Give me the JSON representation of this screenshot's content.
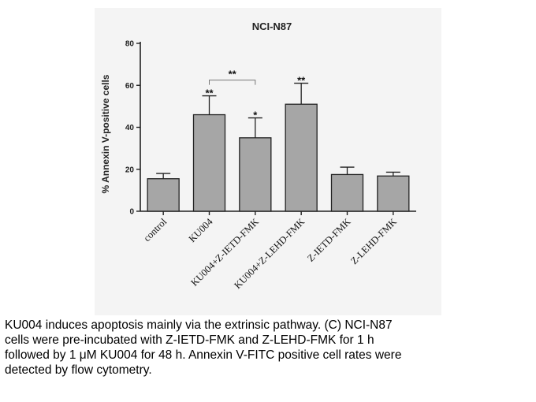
{
  "chart_data": {
    "type": "bar",
    "title": "NCI-N87",
    "ylabel": "% Annexin V-positive cells",
    "xlabel": "",
    "ylim": [
      0,
      80
    ],
    "yticks": [
      0,
      20,
      40,
      60,
      80
    ],
    "categories": [
      "control",
      "KU004",
      "KU004+Z-IETD-FMK",
      "KU004+Z-LEHD-FMK",
      "Z-IETD-FMK",
      "Z-LEHD-FMK"
    ],
    "values": [
      15.5,
      46,
      35,
      51,
      17.5,
      16.8
    ],
    "errors": [
      2.5,
      9,
      9.5,
      10,
      3.5,
      1.8
    ],
    "significance": [
      "",
      "**",
      "*",
      "**",
      "",
      ""
    ],
    "bracket": {
      "from": 1,
      "to": 2,
      "label": "**"
    },
    "bar_color": "#a6a6a6",
    "grid": false
  },
  "caption": {
    "lines": [
      "KU004 induces apoptosis mainly via the extrinsic pathway. (C) NCI-N87",
      "cells were pre-incubated with Z-IETD-FMK and Z-LEHD-FMK for 1 h",
      "followed by 1 μM KU004 for 48 h. Annexin V-FITC positive cell rates were",
      "detected by flow cytometry."
    ]
  }
}
